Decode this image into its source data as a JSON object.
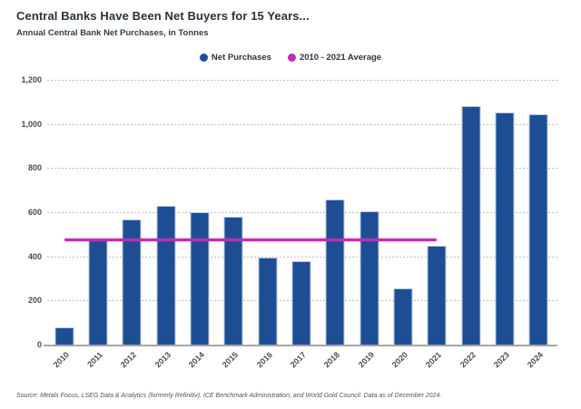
{
  "header": {
    "title": "Central Banks Have Been Net Buyers for 15 Years...",
    "subtitle": "Annual Central Bank Net Purchases, in Tonnes"
  },
  "legend": {
    "items": [
      {
        "label": "Net Purchases",
        "color": "#1d4e94"
      },
      {
        "label": "2010 - 2021 Average",
        "color": "#c02db4"
      }
    ]
  },
  "chart_data": {
    "type": "bar",
    "title": "Central Banks Have Been Net Buyers for 15 Years...",
    "subtitle": "Annual Central Bank Net Purchases, in Tonnes",
    "categories": [
      "2010",
      "2011",
      "2012",
      "2013",
      "2014",
      "2015",
      "2016",
      "2017",
      "2018",
      "2019",
      "2020",
      "2021",
      "2022",
      "2023",
      "2024"
    ],
    "series": [
      {
        "name": "Net Purchases",
        "color": "#1d4e94",
        "values": [
          79,
          481,
          569,
          629,
          601,
          580,
          395,
          379,
          656,
          605,
          255,
          450,
          1082,
          1051,
          1045
        ]
      }
    ],
    "average_line": {
      "name": "2010 - 2021 Average",
      "value": 473,
      "color": "#c02db4",
      "span_categories": [
        "2010",
        "2021"
      ]
    },
    "xlabel": "",
    "ylabel": "",
    "ylim": [
      0,
      1200
    ],
    "ytick_step": 200,
    "ytick_labels": [
      "0",
      "200",
      "400",
      "600",
      "800",
      "1,000",
      "1,200"
    ],
    "grid": "horizontal-dashed",
    "legend_position": "top-center"
  },
  "source": "Source: Metals Focus, LSEG Data & Analytics (formerly Refinitiv), ICE Benchmark Administration, and World Gold Council. Data as of December 2024."
}
